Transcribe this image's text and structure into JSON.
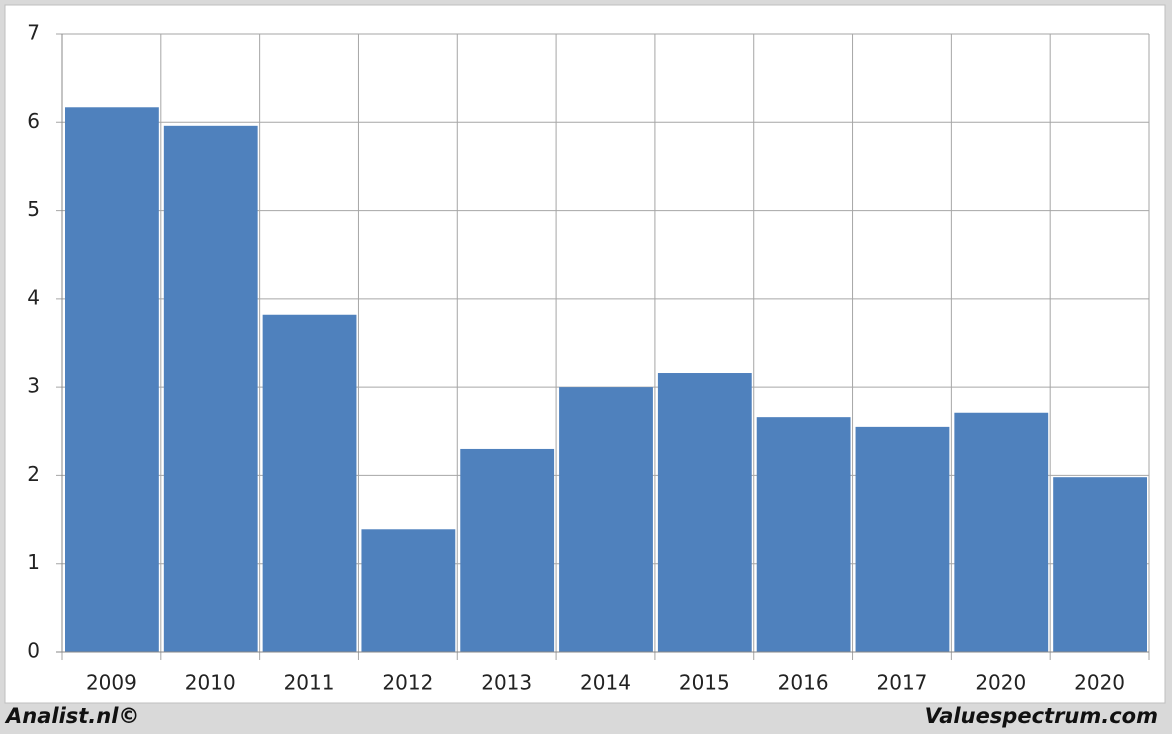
{
  "chart_data": {
    "type": "bar",
    "categories": [
      "2009",
      "2010",
      "2011",
      "2012",
      "2013",
      "2014",
      "2015",
      "2016",
      "2017",
      "2020",
      "2020"
    ],
    "values": [
      6.17,
      5.96,
      3.82,
      1.39,
      2.3,
      3.0,
      3.16,
      2.66,
      2.55,
      2.71,
      1.98
    ],
    "color": "#4f81bd",
    "ylim": [
      0,
      7
    ],
    "yticks": [
      0,
      1,
      2,
      3,
      4,
      5,
      6,
      7
    ],
    "grid": true,
    "annotations": [
      "Analist.nl©",
      "Valuespectrum.com"
    ]
  }
}
